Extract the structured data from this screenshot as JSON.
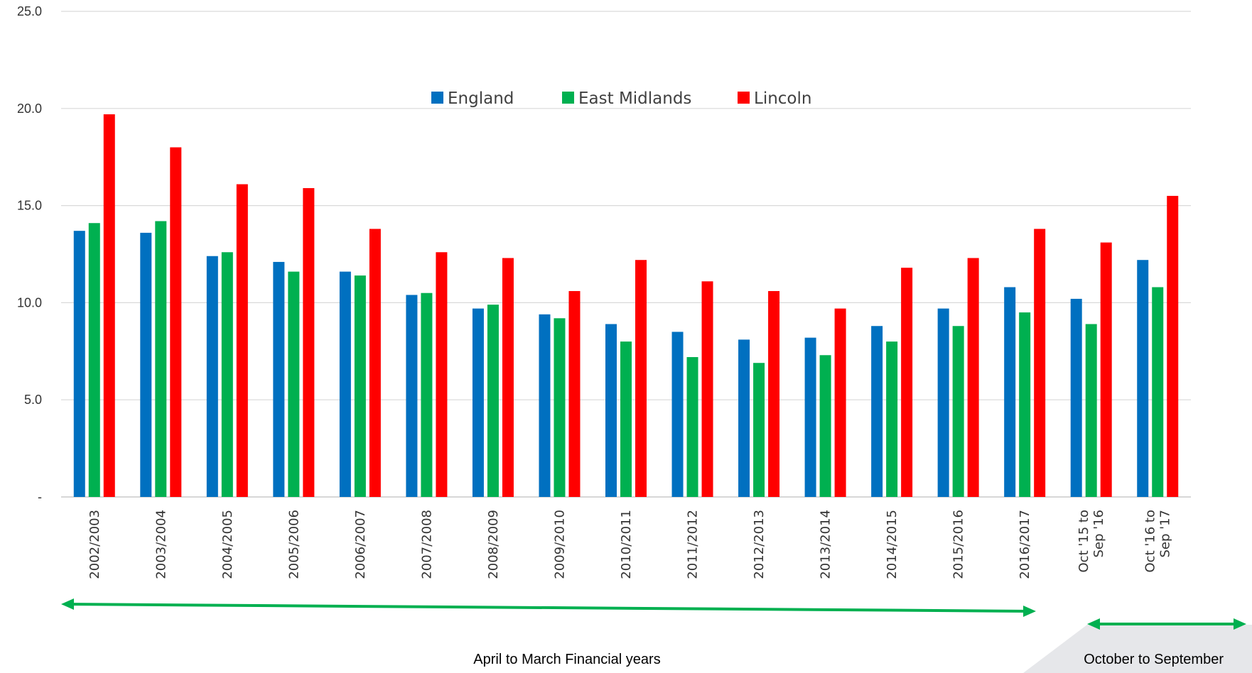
{
  "chart_data": {
    "type": "bar",
    "categories": [
      "2002/2003",
      "2003/2004",
      "2004/2005",
      "2005/2006",
      "2006/2007",
      "2007/2008",
      "2008/2009",
      "2009/2010",
      "2010/2011",
      "2011/2012",
      "2012/2013",
      "2013/2014",
      "2014/2015",
      "2015/2016",
      "2016/2017",
      [
        "Oct '15 to",
        "Sep '16"
      ],
      [
        "Oct '16 to",
        "Sep '17"
      ]
    ],
    "series": [
      {
        "name": "England",
        "color": "#0070C0",
        "values": [
          13.7,
          13.6,
          12.4,
          12.1,
          11.6,
          10.4,
          9.7,
          9.4,
          8.9,
          8.5,
          8.1,
          8.2,
          8.8,
          9.7,
          10.8,
          10.2,
          12.2
        ]
      },
      {
        "name": "East Midlands",
        "color": "#00B050",
        "values": [
          14.1,
          14.2,
          12.6,
          11.6,
          11.4,
          10.5,
          9.9,
          9.2,
          8.0,
          7.2,
          6.9,
          7.3,
          8.0,
          8.8,
          9.5,
          8.9,
          10.8
        ]
      },
      {
        "name": "Lincoln",
        "color": "#FF0000",
        "values": [
          19.7,
          18.0,
          16.1,
          15.9,
          13.8,
          12.6,
          12.3,
          10.6,
          12.2,
          11.1,
          10.6,
          9.7,
          11.8,
          12.3,
          13.8,
          13.1,
          15.5
        ]
      }
    ],
    "ylim": [
      0,
      25
    ],
    "yticks": [
      0,
      5,
      10,
      15,
      20,
      25
    ],
    "ytick_labels": [
      "-",
      "5.0",
      "10.0",
      "15.0",
      "20.0",
      "25.0"
    ],
    "grid": true,
    "legend_position": "top-center",
    "annotations": [
      {
        "text": "April to March Financial years",
        "spans": [
          "2002/2003",
          "2016/2017"
        ],
        "arrow_color": "#00B050"
      },
      {
        "text": "October to September",
        "spans": [
          "Oct '15 to Sep '16",
          "Oct '16 to Sep '17"
        ],
        "arrow_color": "#00B050"
      }
    ]
  }
}
